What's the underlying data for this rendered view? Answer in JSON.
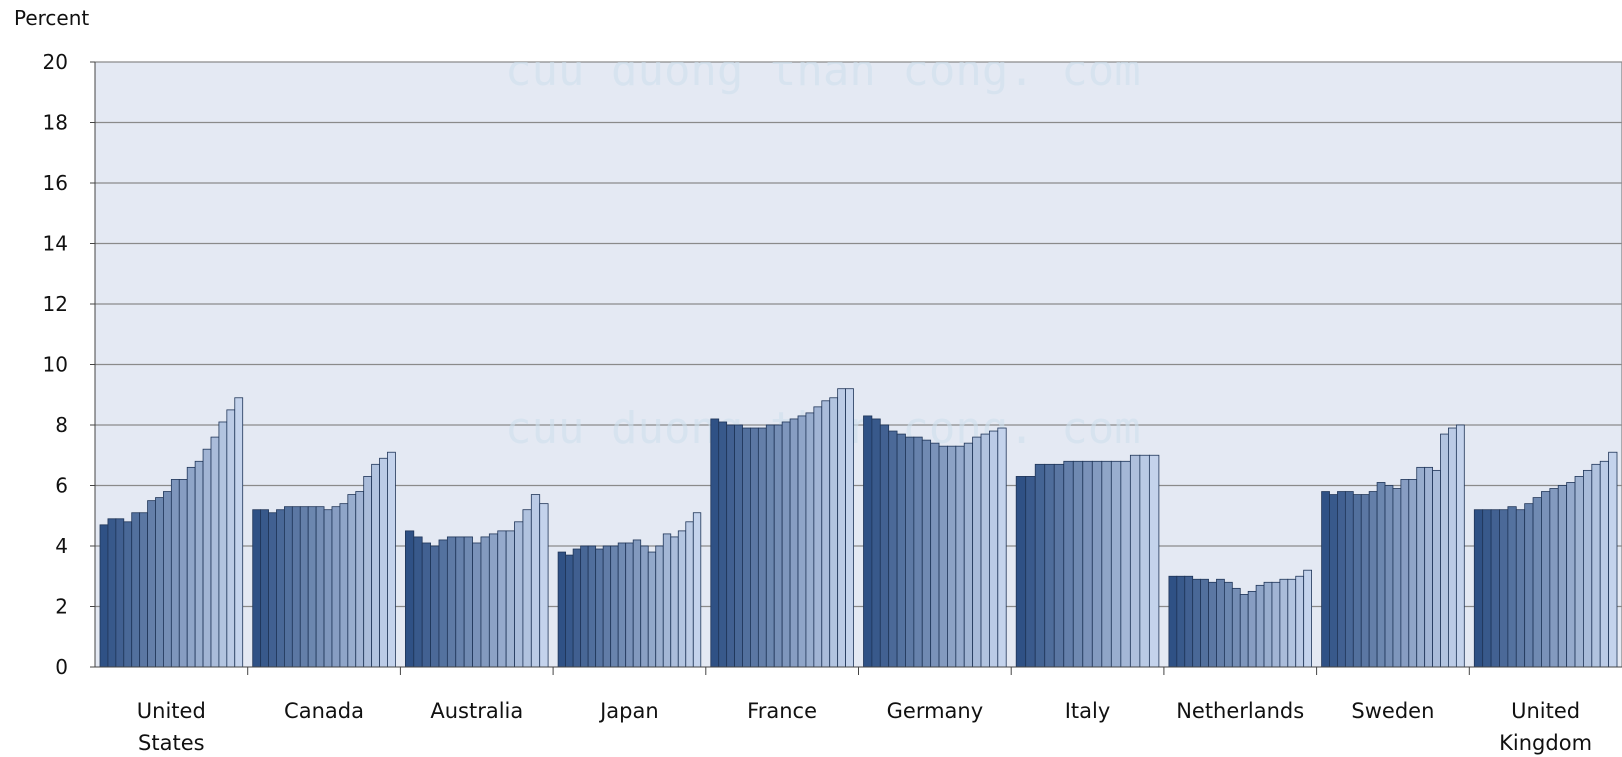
{
  "chart_data": {
    "type": "bar",
    "ylabel": "Percent",
    "ylim": [
      0,
      20
    ],
    "yticks": [
      "0",
      "2",
      "4",
      "6",
      "8",
      "10",
      "12",
      "14",
      "16",
      "18",
      "20"
    ],
    "grid": true,
    "watermark": "cuu duong than cong. com",
    "colors": {
      "plot_bg": "#e4e9f3",
      "bar_dark": "#2f5185",
      "bar_light": "#c4d3ec",
      "grid": "#8a8a8a"
    },
    "categories": [
      {
        "name": "United States",
        "label_lines": [
          "United",
          "States"
        ],
        "values": [
          4.7,
          4.9,
          4.9,
          4.8,
          5.1,
          5.1,
          5.5,
          5.6,
          5.8,
          6.2,
          6.2,
          6.6,
          6.8,
          7.2,
          7.6,
          8.1,
          8.5,
          8.9
        ]
      },
      {
        "name": "Canada",
        "label_lines": [
          "Canada"
        ],
        "values": [
          5.2,
          5.2,
          5.1,
          5.2,
          5.3,
          5.3,
          5.3,
          5.3,
          5.3,
          5.2,
          5.3,
          5.4,
          5.7,
          5.8,
          6.3,
          6.7,
          6.9,
          7.1
        ]
      },
      {
        "name": "Australia",
        "label_lines": [
          "Australia"
        ],
        "values": [
          4.5,
          4.3,
          4.1,
          4.0,
          4.2,
          4.3,
          4.3,
          4.3,
          4.1,
          4.3,
          4.4,
          4.5,
          4.5,
          4.8,
          5.2,
          5.7,
          5.4
        ]
      },
      {
        "name": "Japan",
        "label_lines": [
          "Japan"
        ],
        "values": [
          3.8,
          3.7,
          3.9,
          4.0,
          4.0,
          3.9,
          4.0,
          4.0,
          4.1,
          4.1,
          4.2,
          4.0,
          3.8,
          4.0,
          4.4,
          4.3,
          4.5,
          4.8,
          5.1
        ]
      },
      {
        "name": "France",
        "label_lines": [
          "France"
        ],
        "values": [
          8.2,
          8.1,
          8.0,
          8.0,
          7.9,
          7.9,
          7.9,
          8.0,
          8.0,
          8.1,
          8.2,
          8.3,
          8.4,
          8.6,
          8.8,
          8.9,
          9.2,
          9.2
        ]
      },
      {
        "name": "Germany",
        "label_lines": [
          "Germany"
        ],
        "values": [
          8.3,
          8.2,
          8.0,
          7.8,
          7.7,
          7.6,
          7.6,
          7.5,
          7.4,
          7.3,
          7.3,
          7.3,
          7.4,
          7.6,
          7.7,
          7.8,
          7.9
        ]
      },
      {
        "name": "Italy",
        "label_lines": [
          "Italy"
        ],
        "values": [
          6.3,
          6.3,
          6.7,
          6.7,
          6.7,
          6.8,
          6.8,
          6.8,
          6.8,
          6.8,
          6.8,
          6.8,
          7.0,
          7.0,
          7.0
        ]
      },
      {
        "name": "Netherlands",
        "label_lines": [
          "Netherlands"
        ],
        "values": [
          3.0,
          3.0,
          3.0,
          2.9,
          2.9,
          2.8,
          2.9,
          2.8,
          2.6,
          2.4,
          2.5,
          2.7,
          2.8,
          2.8,
          2.9,
          2.9,
          3.0,
          3.2
        ]
      },
      {
        "name": "Sweden",
        "label_lines": [
          "Sweden"
        ],
        "values": [
          5.8,
          5.7,
          5.8,
          5.8,
          5.7,
          5.7,
          5.8,
          6.1,
          6.0,
          5.9,
          6.2,
          6.2,
          6.6,
          6.6,
          6.5,
          7.7,
          7.9,
          8.0
        ]
      },
      {
        "name": "United Kingdom",
        "label_lines": [
          "United",
          "Kingdom"
        ],
        "values": [
          5.2,
          5.2,
          5.2,
          5.2,
          5.3,
          5.2,
          5.4,
          5.6,
          5.8,
          5.9,
          6.0,
          6.1,
          6.3,
          6.5,
          6.7,
          6.8,
          7.1
        ]
      }
    ]
  }
}
